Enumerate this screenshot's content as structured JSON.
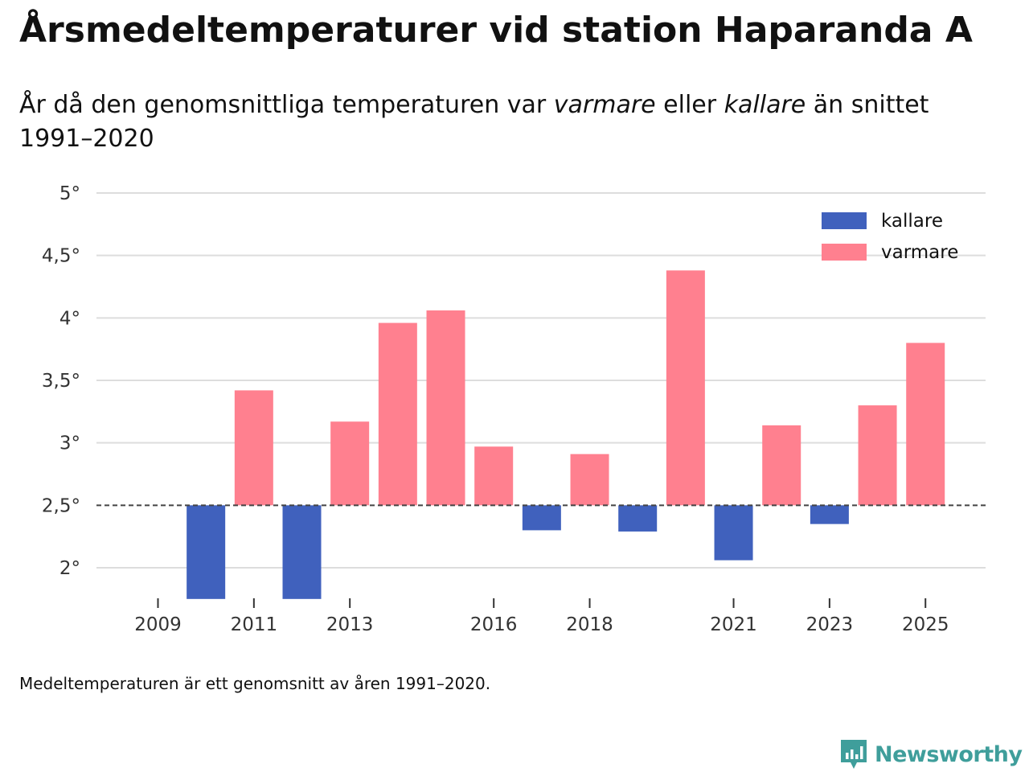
{
  "title": "Årsmedeltemperaturer vid station Haparanda A",
  "subtitle": {
    "part1": "År då den genomsnittliga temperaturen var ",
    "warmer_word": "varmare",
    "part2": " eller ",
    "colder_word": "kallare",
    "part3": " än snittet 1991–2020"
  },
  "caption": "Medeltemperaturen är ett genomsnitt av åren 1991–2020.",
  "logo_text": "Newsworthy",
  "colors": {
    "kallare": "#4061bd",
    "varmare": "#ff808f",
    "grid": "#dddddd",
    "baseline": "#444444",
    "logo": "#3f9e9b"
  },
  "chart_data": {
    "type": "bar",
    "baseline": 2.5,
    "ylim": [
      1.75,
      5
    ],
    "y_ticks": [
      2,
      2.5,
      3,
      3.5,
      4,
      4.5,
      5
    ],
    "y_tick_labels": [
      "2°",
      "2,5°",
      "3°",
      "3,5°",
      "4°",
      "4,5°",
      "5°"
    ],
    "x_tick_labels": [
      "2009",
      "2011",
      "2013",
      "2016",
      "2018",
      "2021",
      "2023",
      "2025"
    ],
    "legend": [
      {
        "key": "kallare",
        "label": "kallare"
      },
      {
        "key": "varmare",
        "label": "varmare"
      }
    ],
    "legend_position": "top-right",
    "years": [
      2009,
      2010,
      2011,
      2012,
      2013,
      2014,
      2015,
      2016,
      2017,
      2018,
      2019,
      2020,
      2021,
      2022,
      2023,
      2024,
      2025
    ],
    "values": [
      null,
      1.75,
      3.42,
      1.75,
      3.17,
      3.96,
      4.06,
      2.97,
      2.3,
      2.91,
      2.29,
      4.38,
      2.06,
      3.14,
      2.35,
      3.3,
      3.8
    ],
    "title": "Årsmedeltemperaturer vid station Haparanda A",
    "xlabel": "",
    "ylabel": ""
  }
}
